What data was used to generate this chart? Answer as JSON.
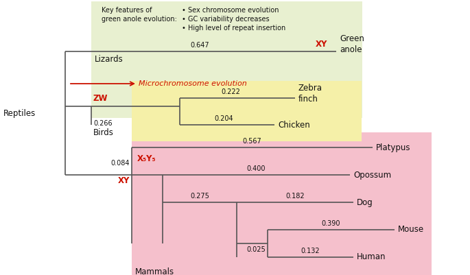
{
  "bg_lizards_color": "#e8f0d0",
  "bg_birds_color": "#f5f0a8",
  "bg_mammals_color": "#f5c0cc",
  "reptiles_label": "Reptiles",
  "mammals_label": "Mammals",
  "key_features_title": "Key features of\ngreen anole evolution:",
  "key_features_bullets": "• Sex chromosome evolution\n• GC variability decreases\n• High level of repeat insertion",
  "microchrom_label": "Microchromosome evolution",
  "line_color": "#555555",
  "red_color": "#cc1100",
  "text_color": "#111111",
  "fontsize": 8.5
}
